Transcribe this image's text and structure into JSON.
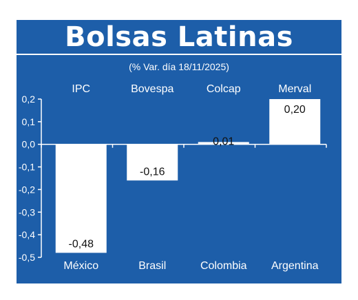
{
  "chart_data": {
    "type": "bar",
    "title": "Bolsas Latinas",
    "subtitle": "(% Var. día 18/11/2025)",
    "categories": [
      "México",
      "Brasil",
      "Colombia",
      "Argentina"
    ],
    "index_names": [
      "IPC",
      "Bovespa",
      "Colcap",
      "Merval"
    ],
    "values": [
      -0.48,
      -0.16,
      0.01,
      0.2
    ],
    "value_labels": [
      "-0,48",
      "-0,16",
      "0,01",
      "0,20"
    ],
    "ylim": [
      -0.5,
      0.2
    ],
    "yticks": [
      0.2,
      0.1,
      0.0,
      -0.1,
      -0.2,
      -0.3,
      -0.4,
      -0.5
    ],
    "ytick_labels": [
      "0,2",
      "0,1",
      "0,0",
      "-0,1",
      "-0,2",
      "-0,3",
      "-0,4",
      "-0,5"
    ],
    "xlabel": "",
    "ylabel": "",
    "grid": false,
    "bar_color": "#ffffff",
    "background_color": "#1d5ea9"
  }
}
